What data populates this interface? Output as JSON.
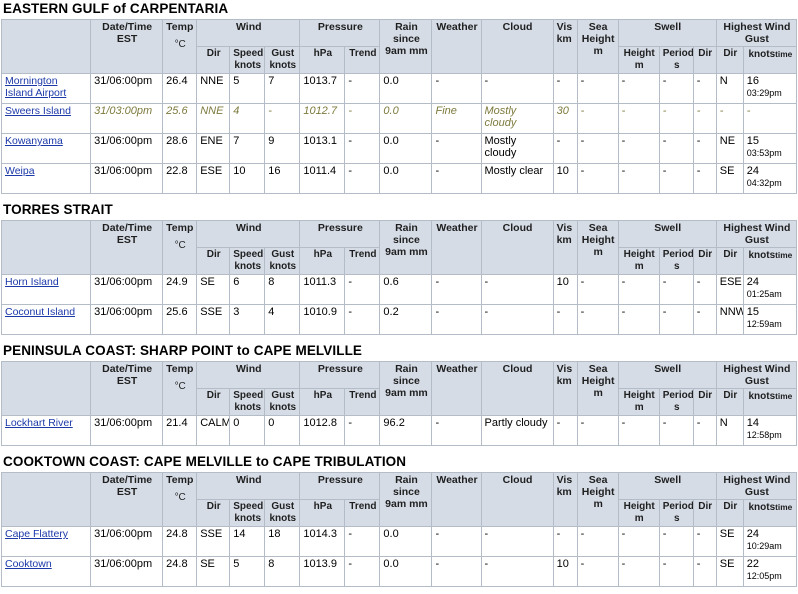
{
  "headers": {
    "datetime": "Date/Time EST",
    "temp": "Temp",
    "temp_unit": "°C",
    "wind": "Wind",
    "pressure": "Pressure",
    "rain": "Rain since 9am mm",
    "weather": "Weather",
    "cloud": "Cloud",
    "vis": "Vis km",
    "sea": "Sea Height m",
    "swell": "Swell",
    "highest_gust": "Highest Wind Gust",
    "dir": "Dir",
    "speed": "Speed knots",
    "gust": "Gust knots",
    "hpa": "hPa",
    "trend": "Trend",
    "height": "Height m",
    "period": "Period s",
    "knots_time": "knots",
    "time_sub": "time"
  },
  "sections": [
    {
      "title": "EASTERN GULF of CARPENTARIA",
      "rows": [
        {
          "station": "Mornington Island Airport",
          "datetime": "31/06:00pm",
          "temp": "26.4",
          "wdir": "NNE",
          "speed": "5",
          "gust": "7",
          "hpa": "1013.7",
          "trend": "-",
          "rain": "0.0",
          "weather": "-",
          "cloud": "-",
          "vis": "-",
          "sea": "-",
          "sh": "-",
          "sp": "-",
          "sd": "-",
          "gdir": "N",
          "gknots": "16",
          "gtime": "03:29pm"
        },
        {
          "station": "Sweers Island",
          "datetime": "31/03:00pm",
          "temp": "25.6",
          "wdir": "NNE",
          "speed": "4",
          "gust": "-",
          "hpa": "1012.7",
          "trend": "-",
          "rain": "0.0",
          "weather": "Fine",
          "cloud": "Mostly cloudy",
          "vis": "30",
          "sea": "-",
          "sh": "-",
          "sp": "-",
          "sd": "-",
          "gdir": "-",
          "gknots": "-",
          "gtime": ""
        },
        {
          "station": "Kowanyama",
          "datetime": "31/06:00pm",
          "temp": "28.6",
          "wdir": "ENE",
          "speed": "7",
          "gust": "9",
          "hpa": "1013.1",
          "trend": "-",
          "rain": "0.0",
          "weather": "-",
          "cloud": "Mostly cloudy",
          "vis": "-",
          "sea": "-",
          "sh": "-",
          "sp": "-",
          "sd": "-",
          "gdir": "NE",
          "gknots": "15",
          "gtime": "03:53pm"
        },
        {
          "station": "Weipa",
          "datetime": "31/06:00pm",
          "temp": "22.8",
          "wdir": "ESE",
          "speed": "10",
          "gust": "16",
          "hpa": "1011.4",
          "trend": "-",
          "rain": "0.0",
          "weather": "-",
          "cloud": "Mostly clear",
          "vis": "10",
          "sea": "-",
          "sh": "-",
          "sp": "-",
          "sd": "-",
          "gdir": "SE",
          "gknots": "24",
          "gtime": "04:32pm"
        }
      ]
    },
    {
      "title": "TORRES STRAIT",
      "rows": [
        {
          "station": "Horn Island",
          "datetime": "31/06:00pm",
          "temp": "24.9",
          "wdir": "SE",
          "speed": "6",
          "gust": "8",
          "hpa": "1011.3",
          "trend": "-",
          "rain": "0.6",
          "weather": "-",
          "cloud": "-",
          "vis": "10",
          "sea": "-",
          "sh": "-",
          "sp": "-",
          "sd": "-",
          "gdir": "ESE",
          "gknots": "24",
          "gtime": "01:25am"
        },
        {
          "station": "Coconut Island",
          "datetime": "31/06:00pm",
          "temp": "25.6",
          "wdir": "SSE",
          "speed": "3",
          "gust": "4",
          "hpa": "1010.9",
          "trend": "-",
          "rain": "0.2",
          "weather": "-",
          "cloud": "-",
          "vis": "-",
          "sea": "-",
          "sh": "-",
          "sp": "-",
          "sd": "-",
          "gdir": "NNW",
          "gknots": "15",
          "gtime": "12:59am"
        }
      ]
    },
    {
      "title": "PENINSULA COAST: SHARP POINT to CAPE MELVILLE",
      "rows": [
        {
          "station": "Lockhart River",
          "datetime": "31/06:00pm",
          "temp": "21.4",
          "wdir": "CALM",
          "speed": "0",
          "gust": "0",
          "hpa": "1012.8",
          "trend": "-",
          "rain": "96.2",
          "weather": "-",
          "cloud": "Partly cloudy",
          "vis": "-",
          "sea": "-",
          "sh": "-",
          "sp": "-",
          "sd": "-",
          "gdir": "N",
          "gknots": "14",
          "gtime": "12:58pm"
        }
      ]
    },
    {
      "title": "COOKTOWN COAST: CAPE MELVILLE to CAPE TRIBULATION",
      "rows": [
        {
          "station": "Cape Flattery",
          "datetime": "31/06:00pm",
          "temp": "24.8",
          "wdir": "SSE",
          "speed": "14",
          "gust": "18",
          "hpa": "1014.3",
          "trend": "-",
          "rain": "0.0",
          "weather": "-",
          "cloud": "-",
          "vis": "-",
          "sea": "-",
          "sh": "-",
          "sp": "-",
          "sd": "-",
          "gdir": "SE",
          "gknots": "24",
          "gtime": "10:29am"
        },
        {
          "station": "Cooktown",
          "datetime": "31/06:00pm",
          "temp": "24.8",
          "wdir": "SE",
          "speed": "5",
          "gust": "8",
          "hpa": "1013.9",
          "trend": "-",
          "rain": "0.0",
          "weather": "-",
          "cloud": "-",
          "vis": "10",
          "sea": "-",
          "sh": "-",
          "sp": "-",
          "sd": "-",
          "gdir": "SE",
          "gknots": "22",
          "gtime": "12:05pm"
        }
      ]
    }
  ]
}
